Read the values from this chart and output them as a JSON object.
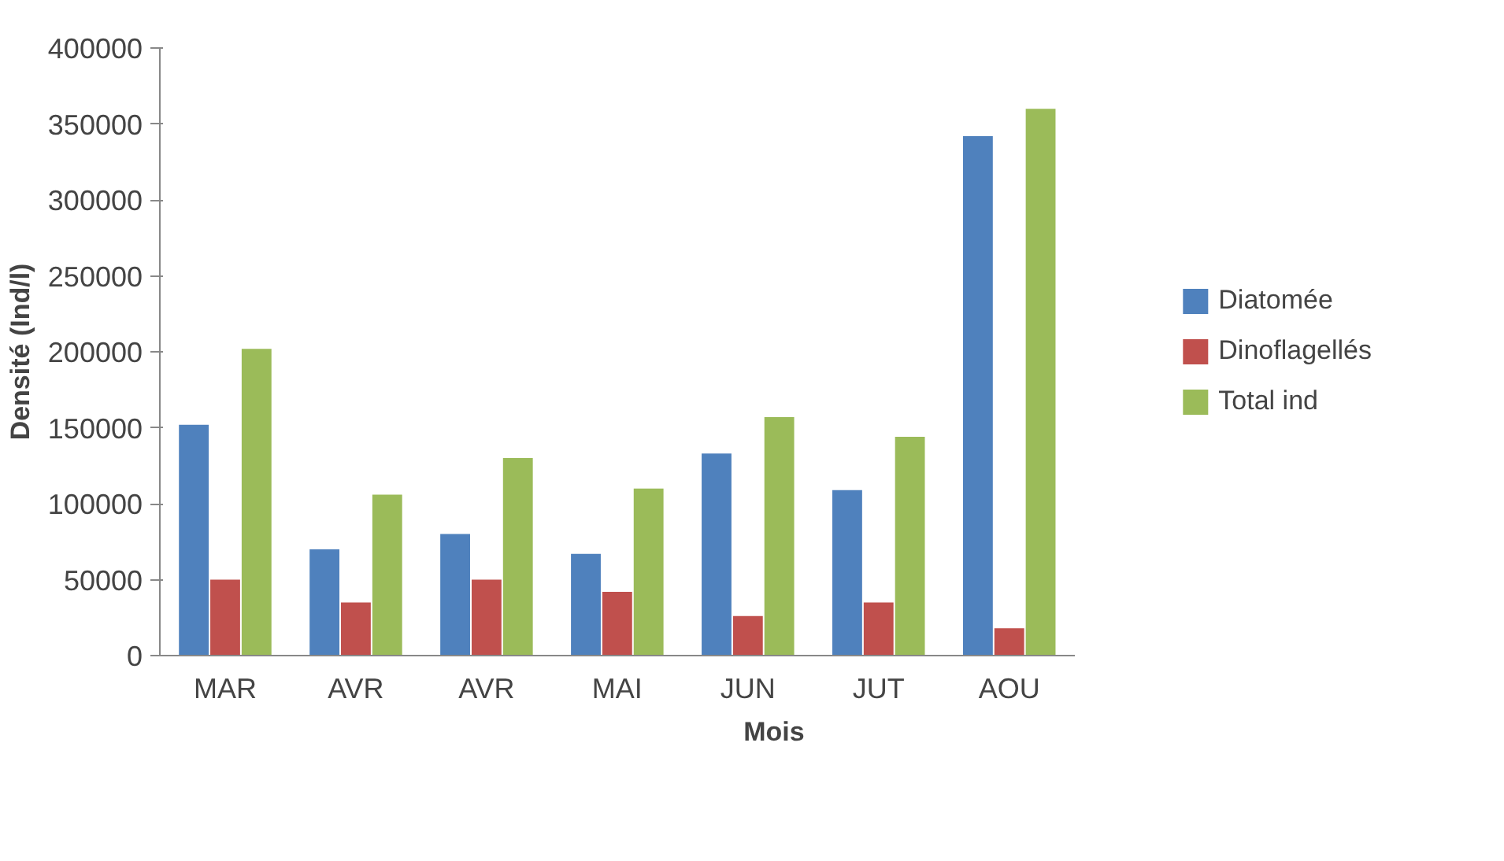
{
  "chart_data": {
    "type": "bar",
    "xlabel": "Mois",
    "ylabel": "Densité (Ind/l)",
    "categories": [
      "MAR",
      "AVR",
      "AVR",
      "MAI",
      "JUN",
      "JUT",
      "AOU"
    ],
    "series": [
      {
        "name": "Diatomée",
        "color": "#4f81bd",
        "values": [
          152000,
          70000,
          80000,
          67000,
          133000,
          109000,
          342000
        ]
      },
      {
        "name": "Dinoflagellés",
        "color": "#c0504d",
        "values": [
          50000,
          35000,
          50000,
          42000,
          26000,
          35000,
          18000
        ]
      },
      {
        "name": "Total ind",
        "color": "#9bbb59",
        "values": [
          202000,
          106000,
          130000,
          110000,
          157000,
          144000,
          360000
        ]
      }
    ],
    "ylim": [
      0,
      400000
    ],
    "yticks": [
      0,
      50000,
      100000,
      150000,
      200000,
      250000,
      300000,
      350000,
      400000
    ],
    "grid": false,
    "legend": "right"
  }
}
